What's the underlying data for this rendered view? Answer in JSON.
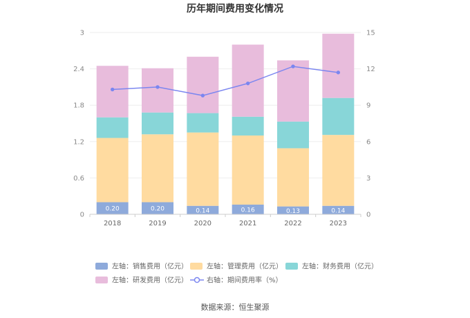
{
  "chart_data": {
    "type": "bar",
    "title": "历年期间费用变化情况",
    "categories": [
      "2018",
      "2019",
      "2020",
      "2021",
      "2022",
      "2023"
    ],
    "series": [
      {
        "name": "左轴：销售费用（亿元）",
        "axis": "left",
        "kind": "stacked-bar",
        "color": "#8eaadb",
        "values": [
          0.2,
          0.2,
          0.14,
          0.16,
          0.13,
          0.14
        ],
        "labels": [
          "0.20",
          "0.20",
          "0.14",
          "0.16",
          "0.13",
          "0.14"
        ]
      },
      {
        "name": "左轴：管理费用（亿元）",
        "axis": "left",
        "kind": "stacked-bar",
        "color": "#ffdba0",
        "values": [
          1.06,
          1.12,
          1.21,
          1.14,
          0.96,
          1.17
        ]
      },
      {
        "name": "左轴：财务费用（亿元）",
        "axis": "left",
        "kind": "stacked-bar",
        "color": "#88d6d8",
        "values": [
          0.34,
          0.36,
          0.32,
          0.31,
          0.44,
          0.61
        ]
      },
      {
        "name": "左轴：研发费用（亿元）",
        "axis": "left",
        "kind": "stacked-bar",
        "color": "#e8bcdc",
        "values": [
          0.85,
          0.73,
          0.93,
          1.19,
          1.01,
          1.06
        ]
      },
      {
        "name": "右轴：期间费用率（%）",
        "axis": "right",
        "kind": "line",
        "color": "#7b86f0",
        "values": [
          10.3,
          10.5,
          9.8,
          10.8,
          12.2,
          11.7
        ]
      }
    ],
    "y_left": {
      "min": 0,
      "max": 3,
      "ticks": [
        "0",
        "0.6",
        "1.2",
        "1.8",
        "2.4",
        "3"
      ]
    },
    "y_right": {
      "min": 0,
      "max": 15,
      "ticks": [
        "0",
        "3",
        "6",
        "9",
        "12",
        "15"
      ]
    },
    "grid": true,
    "legend_position": "bottom"
  },
  "source": "数据来源：恒生聚源"
}
